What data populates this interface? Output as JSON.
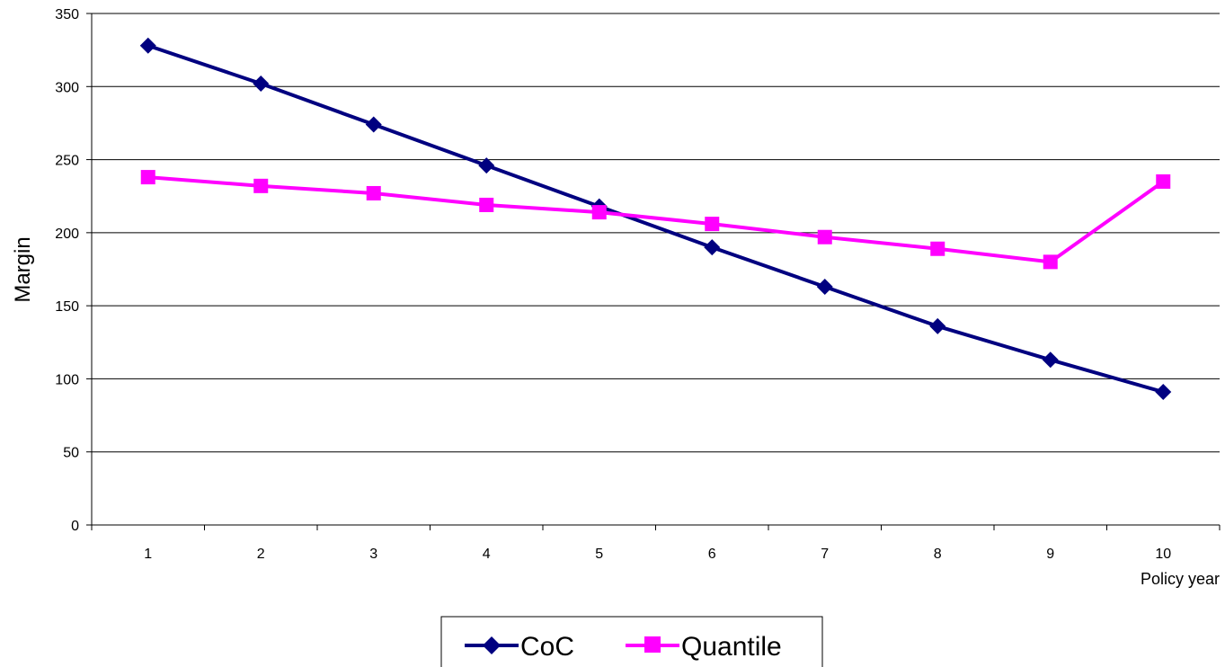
{
  "chart_data": {
    "type": "line",
    "x": [
      1,
      2,
      3,
      4,
      5,
      6,
      7,
      8,
      9,
      10
    ],
    "categories": [
      "1",
      "2",
      "3",
      "4",
      "5",
      "6",
      "7",
      "8",
      "9",
      "10"
    ],
    "series": [
      {
        "name": "CoC",
        "color": "#000080",
        "marker": "diamond",
        "values": [
          328,
          302,
          274,
          246,
          218,
          190,
          163,
          136,
          113,
          91
        ]
      },
      {
        "name": "Quantile",
        "color": "#FF00FF",
        "marker": "square",
        "values": [
          238,
          232,
          227,
          219,
          214,
          206,
          197,
          189,
          180,
          235
        ]
      }
    ],
    "title": "",
    "xlabel": "Policy year",
    "ylabel": "Margin",
    "ylim": [
      0,
      350
    ],
    "yticks": [
      "0",
      "50",
      "100",
      "150",
      "200",
      "250",
      "300",
      "350"
    ],
    "grid": "horizontal",
    "legend_position": "bottom"
  }
}
